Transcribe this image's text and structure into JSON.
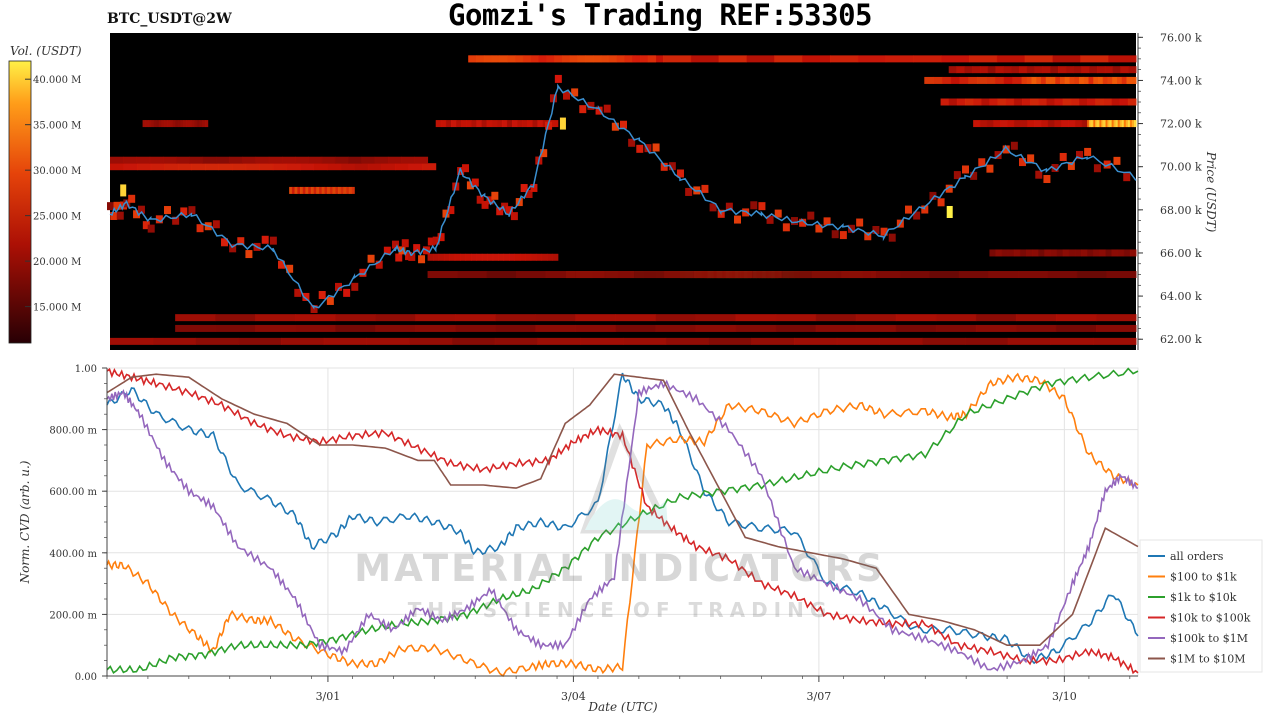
{
  "header": {
    "symbol_label": "BTC_USDT@2W",
    "title": "Gomzi's Trading REF:53305"
  },
  "watermark": {
    "line1": "MATERIAL INDICATORS",
    "line2": "THE SCIENCE OF TRADING"
  },
  "colors": {
    "heat_low": "#000000",
    "heat_mid": "#d21a0b",
    "heat_high": "#ffdd33",
    "price_line": "#3a8fd0"
  },
  "chart_data": [
    {
      "type": "heatmap",
      "ylabel": "Price (USDT)",
      "ylim": [
        61500,
        76200
      ],
      "y_ticks": [
        "62.00 k",
        "64.00 k",
        "66.00 k",
        "68.00 k",
        "70.00 k",
        "72.00 k",
        "74.00 k",
        "76.00 k"
      ],
      "colorbar": {
        "label": "Vol. (USDT)",
        "range": [
          11000000,
          42000000
        ],
        "ticks": [
          "15.000 M",
          "20.000 M",
          "25.000 M",
          "30.000 M",
          "35.000 M",
          "40.000 M"
        ]
      },
      "price_series": {
        "x": [
          0,
          0.2,
          0.5,
          1,
          1.5,
          2,
          2.5,
          3,
          3.5,
          3.7,
          4,
          4.3,
          4.6,
          4.9,
          5.2,
          5.5,
          6,
          6.5,
          7,
          7.5,
          8,
          8.5,
          9,
          9.5,
          10,
          10.5,
          11,
          11.5,
          12,
          12.6
        ],
        "y": [
          67800,
          68300,
          67500,
          67800,
          66400,
          66200,
          63400,
          64800,
          66200,
          66000,
          66200,
          69800,
          68600,
          67800,
          69200,
          73700,
          72600,
          71200,
          69500,
          68000,
          67800,
          67400,
          67200,
          66800,
          68200,
          69500,
          70800,
          69800,
          70500,
          69500
        ]
      }
    },
    {
      "type": "line",
      "xlabel": "Date (UTC)",
      "ylabel": "Norm. CVD (arb. u.)",
      "ylim": [
        0,
        1
      ],
      "y_ticks": [
        "0.00",
        "200.00 m",
        "400.00 m",
        "600.00 m",
        "800.00 m",
        "1.00"
      ],
      "x_ticks": [
        "3/01",
        "3/04",
        "3/07",
        "3/10"
      ],
      "grid": true,
      "legend_position": "right",
      "series": [
        {
          "name": "all orders",
          "color": "#1f77b4",
          "x": [
            0,
            0.3,
            0.6,
            1.0,
            1.3,
            1.6,
            2.0,
            2.3,
            2.5,
            2.8,
            3.0,
            3.3,
            3.7,
            4.0,
            4.3,
            4.5,
            4.8,
            5.0,
            5.3,
            5.6,
            6.0,
            6.3,
            6.5,
            6.8,
            7.0,
            7.3,
            7.6,
            8.0,
            8.4,
            8.8,
            9.2,
            9.5,
            9.9,
            10.3,
            10.7,
            11.0,
            11.3,
            11.6,
            12.0,
            12.3,
            12.6
          ],
          "y": [
            0.88,
            0.93,
            0.85,
            0.8,
            0.78,
            0.62,
            0.57,
            0.52,
            0.42,
            0.46,
            0.52,
            0.5,
            0.52,
            0.5,
            0.47,
            0.4,
            0.42,
            0.48,
            0.5,
            0.48,
            0.56,
            0.98,
            0.9,
            0.88,
            0.8,
            0.6,
            0.5,
            0.48,
            0.47,
            0.3,
            0.27,
            0.22,
            0.15,
            0.15,
            0.13,
            0.12,
            0.05,
            0.08,
            0.17,
            0.27,
            0.13
          ]
        },
        {
          "name": "$100 to $1k",
          "color": "#ff7f0e",
          "x": [
            0,
            0.2,
            0.5,
            0.8,
            1.1,
            1.3,
            1.5,
            1.8,
            2.0,
            2.3,
            2.7,
            3.0,
            3.3,
            3.6,
            4.0,
            4.4,
            4.8,
            5.2,
            5.4,
            5.7,
            6.0,
            6.3,
            6.6,
            7.0,
            7.3,
            7.6,
            8.0,
            8.4,
            8.8,
            9.2,
            9.5,
            10.0,
            10.3,
            10.5,
            10.8,
            11.1,
            11.4,
            11.7,
            12.0,
            12.3,
            12.6
          ],
          "y": [
            0.36,
            0.36,
            0.3,
            0.2,
            0.13,
            0.08,
            0.2,
            0.18,
            0.18,
            0.12,
            0.07,
            0.04,
            0.04,
            0.09,
            0.09,
            0.05,
            0.01,
            0.03,
            0.04,
            0.04,
            0.02,
            0.03,
            0.75,
            0.77,
            0.76,
            0.88,
            0.86,
            0.82,
            0.86,
            0.88,
            0.85,
            0.86,
            0.84,
            0.85,
            0.95,
            0.97,
            0.96,
            0.9,
            0.72,
            0.65,
            0.62
          ]
        },
        {
          "name": "$1k to $10k",
          "color": "#2ca02c",
          "x": [
            0,
            0.4,
            0.8,
            1.2,
            1.6,
            2.0,
            2.4,
            2.8,
            3.2,
            3.6,
            4.0,
            4.4,
            4.8,
            5.2,
            5.6,
            6.0,
            6.5,
            7.0,
            7.5,
            8.0,
            8.5,
            9.0,
            9.5,
            10.0,
            10.5,
            11.0,
            11.5,
            12.0,
            12.6
          ],
          "y": [
            0.02,
            0.02,
            0.06,
            0.07,
            0.1,
            0.1,
            0.1,
            0.12,
            0.15,
            0.17,
            0.18,
            0.2,
            0.25,
            0.28,
            0.35,
            0.45,
            0.52,
            0.58,
            0.6,
            0.62,
            0.65,
            0.68,
            0.7,
            0.72,
            0.85,
            0.9,
            0.95,
            0.97,
            0.99
          ]
        },
        {
          "name": "$10k to $100k",
          "color": "#d62728",
          "x": [
            0,
            0.3,
            0.6,
            1.0,
            1.4,
            1.8,
            2.2,
            2.6,
            3.0,
            3.4,
            3.8,
            4.2,
            4.6,
            5.0,
            5.4,
            5.7,
            6.0,
            6.3,
            6.6,
            6.9,
            7.2,
            7.6,
            8.0,
            8.4,
            8.8,
            9.2,
            9.6,
            10.0,
            10.4,
            10.8,
            11.2,
            11.6,
            12.0,
            12.3,
            12.6
          ],
          "y": [
            0.99,
            0.97,
            0.95,
            0.92,
            0.88,
            0.82,
            0.78,
            0.76,
            0.78,
            0.79,
            0.74,
            0.69,
            0.67,
            0.69,
            0.7,
            0.76,
            0.8,
            0.78,
            0.55,
            0.48,
            0.42,
            0.38,
            0.3,
            0.26,
            0.2,
            0.18,
            0.17,
            0.17,
            0.1,
            0.08,
            0.05,
            0.05,
            0.08,
            0.06,
            0.01
          ]
        },
        {
          "name": "$100k to $1M",
          "color": "#9467bd",
          "x": [
            0,
            0.2,
            0.4,
            0.7,
            1.0,
            1.3,
            1.6,
            2.0,
            2.3,
            2.6,
            2.9,
            3.2,
            3.5,
            3.8,
            4.1,
            4.4,
            4.7,
            5.0,
            5.3,
            5.6,
            5.9,
            6.2,
            6.5,
            6.8,
            7.2,
            7.6,
            8.0,
            8.4,
            8.8,
            9.2,
            9.6,
            10.0,
            10.4,
            10.8,
            11.2,
            11.5,
            11.8,
            12.0,
            12.2,
            12.4,
            12.6
          ],
          "y": [
            0.9,
            0.92,
            0.85,
            0.7,
            0.6,
            0.55,
            0.42,
            0.35,
            0.25,
            0.1,
            0.08,
            0.2,
            0.15,
            0.22,
            0.18,
            0.22,
            0.28,
            0.15,
            0.1,
            0.1,
            0.25,
            0.32,
            0.92,
            0.95,
            0.9,
            0.8,
            0.65,
            0.35,
            0.3,
            0.25,
            0.15,
            0.12,
            0.08,
            0.02,
            0.05,
            0.1,
            0.3,
            0.42,
            0.6,
            0.65,
            0.61
          ]
        },
        {
          "name": "$1M to $10M",
          "color": "#8c564b",
          "x": [
            0,
            0.3,
            0.6,
            1.0,
            1.4,
            1.8,
            2.2,
            2.6,
            3.0,
            3.4,
            3.8,
            4.0,
            4.2,
            4.6,
            5.0,
            5.3,
            5.6,
            5.9,
            6.2,
            6.5,
            6.8,
            7.1,
            7.4,
            7.8,
            8.2,
            8.6,
            9.0,
            9.4,
            9.8,
            10.2,
            10.6,
            11.0,
            11.4,
            11.8,
            12.2,
            12.6
          ],
          "y": [
            0.92,
            0.97,
            0.98,
            0.97,
            0.9,
            0.85,
            0.82,
            0.75,
            0.75,
            0.74,
            0.7,
            0.7,
            0.62,
            0.62,
            0.61,
            0.64,
            0.82,
            0.88,
            0.98,
            0.97,
            0.96,
            0.8,
            0.65,
            0.45,
            0.42,
            0.4,
            0.38,
            0.35,
            0.2,
            0.18,
            0.15,
            0.1,
            0.1,
            0.2,
            0.48,
            0.42
          ]
        }
      ]
    }
  ]
}
